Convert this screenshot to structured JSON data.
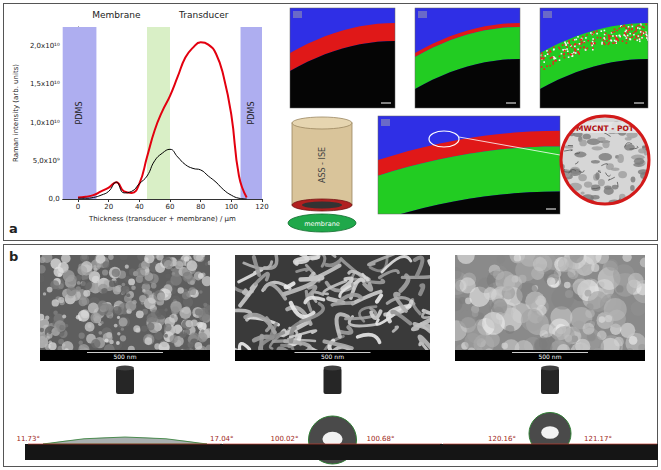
{
  "figure_panels": [
    "a",
    "b"
  ],
  "chart_data": {
    "type": "line",
    "annotations": [
      {
        "text": "Membrane",
        "x": 25
      },
      {
        "text": "Transducer",
        "x": 82
      }
    ],
    "x_label": "Thickness (transducer + membrane) / µm",
    "y_label": "Raman intensity (arb. units)",
    "x": [
      0,
      5,
      10,
      15,
      20,
      25,
      30,
      35,
      40,
      45,
      50,
      55,
      60,
      65,
      70,
      75,
      80,
      85,
      90,
      95,
      100,
      105,
      110
    ],
    "series": [
      {
        "color": "#e3000f",
        "values": [
          200000000.0,
          300000000.0,
          500000000.0,
          1000000000.0,
          1500000000.0,
          2200000000.0,
          1000000000.0,
          800000000.0,
          2000000000.0,
          5500000000.0,
          9000000000.0,
          11500000000.0,
          13500000000.0,
          16000000000.0,
          18500000000.0,
          19800000000.0,
          20500000000.0,
          20200000000.0,
          19000000000.0,
          16000000000.0,
          11000000000.0,
          3000000000.0,
          200000000.0
        ]
      },
      {
        "color": "#000000",
        "values": [
          100000000.0,
          100000000.0,
          200000000.0,
          500000000.0,
          1000000000.0,
          2200000000.0,
          800000000.0,
          1000000000.0,
          2000000000.0,
          3000000000.0,
          5000000000.0,
          6000000000.0,
          6500000000.0,
          5500000000.0,
          4500000000.0,
          4000000000.0,
          3800000000.0,
          3000000000.0,
          2200000000.0,
          1200000000.0,
          500000000.0,
          100000000.0,
          0
        ]
      }
    ],
    "bands": [
      {
        "label": "PDMS",
        "x_range": [
          -10,
          12
        ],
        "color": "#aeaef0"
      },
      {
        "x_range": [
          45,
          60
        ],
        "color": "#d9efc6"
      },
      {
        "label": "PDMS",
        "x_range": [
          106,
          120
        ],
        "color": "#aeaef0"
      }
    ],
    "xlim": [
      -10,
      120
    ],
    "xticks": [
      0,
      20,
      40,
      60,
      80,
      100,
      120
    ],
    "ylim": [
      0,
      22500000000.0
    ],
    "yticks": [
      {
        "value": 0,
        "label": "0,0"
      },
      {
        "value": 5000000000.0,
        "label": "5,0x10⁹"
      },
      {
        "value": 10000000000.0,
        "label": "1,0x10¹⁰"
      },
      {
        "value": 15000000000.0,
        "label": "1,5x10¹⁰"
      },
      {
        "value": 20000000000.0,
        "label": "2,0x10¹⁰"
      }
    ],
    "grid": false
  },
  "diagram_labels": {
    "electrode": "ASS - ISE",
    "membrane": "membrane",
    "inset": "MWCNT - POT"
  },
  "sem_panel": {
    "scale_bars": [
      "500 nm",
      "500 nm",
      "500 nm"
    ],
    "contact_angles": [
      [
        "11.73°",
        "17.04°"
      ],
      [
        "100.02°",
        "100.68°"
      ],
      [
        "120.16°",
        "121.17°"
      ]
    ]
  }
}
